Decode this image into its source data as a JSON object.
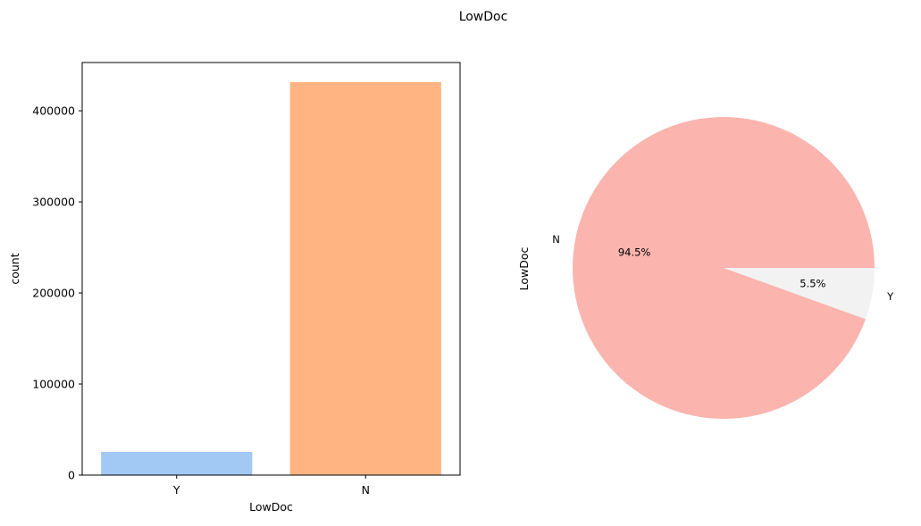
{
  "figure": {
    "suptitle": "LowDoc"
  },
  "chart_data": [
    {
      "type": "bar",
      "categories": [
        "Y",
        "N"
      ],
      "values": [
        25500,
        431500
      ],
      "colors": [
        "#a1c9f4",
        "#ffb482"
      ],
      "xlabel": "LowDoc",
      "ylabel": "count",
      "ylim": [
        0,
        453000
      ],
      "yticks": [
        0,
        100000,
        200000,
        300000,
        400000
      ],
      "ytick_labels": [
        "0",
        "100000",
        "200000",
        "300000",
        "400000"
      ],
      "grid": false
    },
    {
      "type": "pie",
      "labels": [
        "N",
        "Y"
      ],
      "values": [
        94.5,
        5.5
      ],
      "autopct_labels": [
        "94.5%",
        "5.5%"
      ],
      "colors": [
        "#fbb4ae",
        "#f2f2f2"
      ],
      "ylabel": "LowDoc",
      "legend": false
    }
  ]
}
